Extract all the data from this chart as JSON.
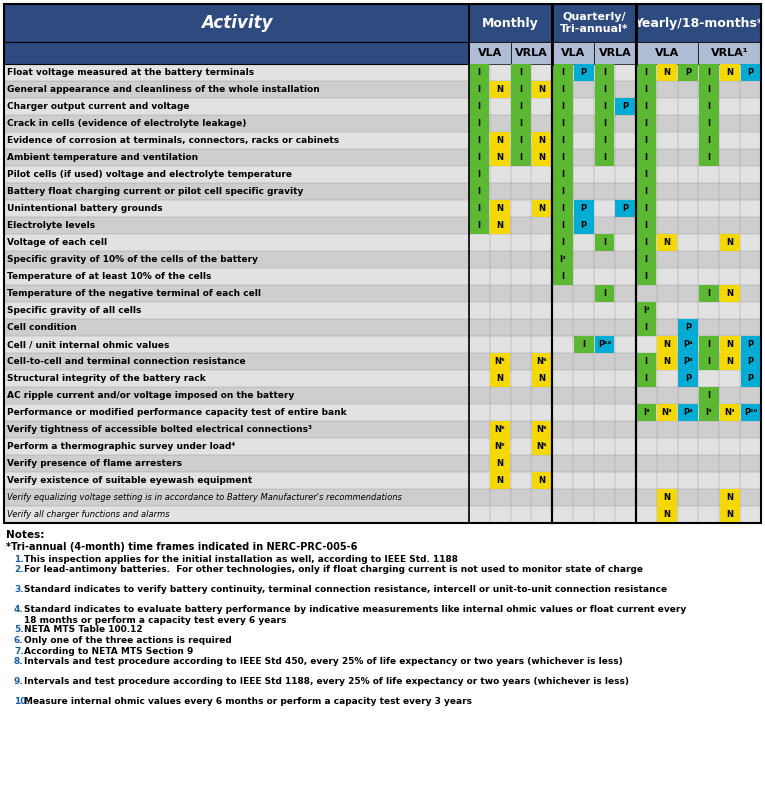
{
  "header_bg": "#2e4b80",
  "subheader_bg": "#c5cfe0",
  "subheader2_bg": "#b0bcd4",
  "green": "#5cb833",
  "yellow": "#f5d800",
  "blue": "#00acd4",
  "row_odd": "#e2e2e2",
  "row_even": "#cecece",
  "activities": [
    "Float voltage measured at the battery terminals",
    "General appearance and cleanliness of the whole installation",
    "Charger output current and voltage",
    "Crack in cells (evidence of electrolyte leakage)",
    "Evidence of corrosion at terminals, connectors, racks or cabinets",
    "Ambient temperature and ventilation",
    "Pilot cells (if used) voltage and electrolyte temperature",
    "Battery float charging current or pilot cell specific gravity",
    "Unintentional battery grounds",
    "Electrolyte levels",
    "Voltage of each cell",
    "Specific gravity of 10% of the cells of the battery",
    "Temperature of at least 10% of the cells",
    "Temperature of the negative terminal of each cell",
    "Specific gravity of all cells",
    "Cell condition",
    "Cell / unit internal ohmic values",
    "Cell-to-cell and terminal connection resistance",
    "Structural integrity of the battery rack",
    "AC ripple current and/or voltage imposed on the battery",
    "Performance or modified performance capacity test of entire bank",
    "Verify tightness of accessible bolted electrical connections³",
    "Perform a thermographic survey under load⁴",
    "Verify presence of flame arresters",
    "Verify existence of suitable eyewash equipment",
    "Verify equalizing voltage setting is in accordance to Battery Manufacturer's recommendations",
    "Verify all charger functions and alarms"
  ],
  "small_rows": [
    25,
    26
  ],
  "notes": [
    "This inspection applies for the initial installation as well, according to IEEE Std. 1188",
    "For lead-antimony batteries.  For other technologies, only if float charging current is not used to monitor state of charge",
    "Standard indicates to verify battery continuity, terminal connection resistance, intercell or unit-to-unit connection resistance",
    "Standard indicates to evaluate battery performance by indicative measurements like internal ohmic values or float current every\n18 months or perform a capacity test every 6 years",
    "NETA MTS Table 100.12",
    "Only one of the three actions is required",
    "According to NETA MTS Section 9",
    "Intervals and test procedure according to IEEE Std 450, every 25% of life expectancy or two years (whichever is less)",
    "Intervals and test procedure according to IEEE Std 1188, every 25% of life expectancy or two years (whichever is less)",
    "Measure internal ohmic values every 6 months or perform a capacity test every 3 years"
  ]
}
